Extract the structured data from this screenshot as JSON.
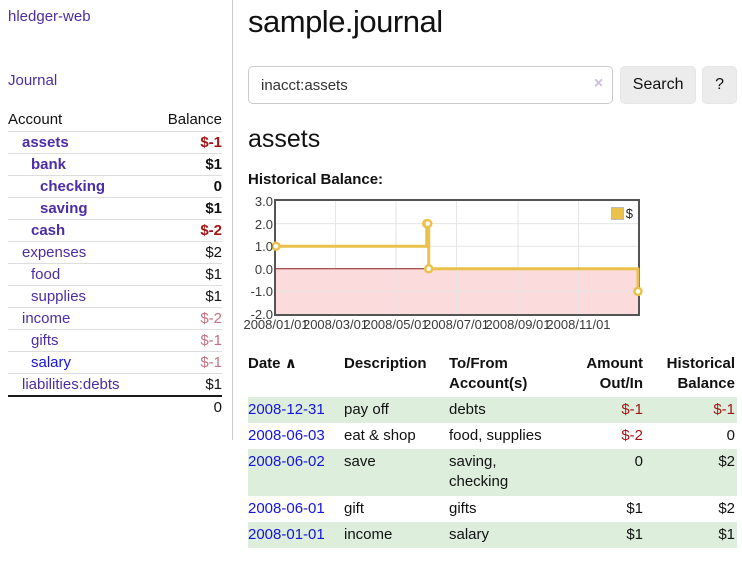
{
  "app": {
    "title": "hledger-web",
    "journal_link": "Journal"
  },
  "sidebar": {
    "col_account": "Account",
    "col_balance": "Balance",
    "accounts": [
      {
        "name": "assets",
        "depth": 1,
        "balance": "$-1",
        "bold": true,
        "balance_tone": "strong-negative",
        "link_color": "purple"
      },
      {
        "name": "bank",
        "depth": 2,
        "balance": "$1",
        "bold": true,
        "balance_tone": "normal",
        "link_color": "purple"
      },
      {
        "name": "checking",
        "depth": 3,
        "balance": "0",
        "bold": true,
        "balance_tone": "normal",
        "link_color": "purple"
      },
      {
        "name": "saving",
        "depth": 3,
        "balance": "$1",
        "bold": true,
        "balance_tone": "normal",
        "link_color": "purple"
      },
      {
        "name": "cash",
        "depth": 2,
        "balance": "$-2",
        "bold": true,
        "balance_tone": "strong-negative",
        "link_color": "purple"
      },
      {
        "name": "expenses",
        "depth": 1,
        "balance": "$2",
        "bold": false,
        "balance_tone": "normal",
        "link_color": "purple"
      },
      {
        "name": "food",
        "depth": 2,
        "balance": "$1",
        "bold": false,
        "balance_tone": "normal",
        "link_color": "purple"
      },
      {
        "name": "supplies",
        "depth": 2,
        "balance": "$1",
        "bold": false,
        "balance_tone": "normal",
        "link_color": "purple"
      },
      {
        "name": "income",
        "depth": 1,
        "balance": "$-2",
        "bold": false,
        "balance_tone": "soft-negative",
        "link_color": "purple"
      },
      {
        "name": "gifts",
        "depth": 2,
        "balance": "$-1",
        "bold": false,
        "balance_tone": "soft-negative",
        "link_color": "purple"
      },
      {
        "name": "salary",
        "depth": 2,
        "balance": "$-1",
        "bold": false,
        "balance_tone": "soft-negative",
        "link_color": "blue"
      },
      {
        "name": "liabilities:debts",
        "depth": 1,
        "balance": "$1",
        "bold": false,
        "balance_tone": "normal",
        "link_color": "purple"
      }
    ],
    "total": "0"
  },
  "main": {
    "title": "sample.journal",
    "search": {
      "value": "inacct:assets",
      "clear_icon": "×",
      "search_label": "Search",
      "help_label": "?"
    },
    "account_heading": "assets",
    "section_label": "Historical Balance:"
  },
  "chart_data": {
    "type": "line",
    "title": "Historical Balance",
    "step": true,
    "legend": [
      {
        "label": "$",
        "color": "#E9C14B"
      }
    ],
    "x_tick_labels": [
      "2008/01/01",
      "2008/03/01",
      "2008/05/01",
      "2008/07/01",
      "2008/09/01",
      "2008/11/01"
    ],
    "x_tick_days": [
      0,
      60,
      121,
      182,
      244,
      305
    ],
    "x_domain_days": 365,
    "y_ticks": [
      "3.0",
      "2.0",
      "1.0",
      "0.0",
      "-1.0",
      "-2.0"
    ],
    "ylim": [
      -2,
      3
    ],
    "points": [
      {
        "date": "2008-01-01",
        "day": 0,
        "value": 1
      },
      {
        "date": "2008-06-01",
        "day": 152,
        "value": 2
      },
      {
        "date": "2008-06-02",
        "day": 153,
        "value": 2
      },
      {
        "date": "2008-06-03",
        "day": 154,
        "value": 0
      },
      {
        "date": "2008-12-31",
        "day": 365,
        "value": -1
      }
    ],
    "line_color": "#E9C14B",
    "negative_region_color": "#FBDBDB",
    "zero_line_color": "#8B1A1A",
    "grid_color": "#E6E6E6",
    "border_color": "#545454"
  },
  "register": {
    "sort_icon": "∧",
    "headers": {
      "date": "Date",
      "description": "Description",
      "accounts": "To/From Account(s)",
      "amount": "Amount Out/In",
      "balance": "Historical Balance"
    },
    "rows": [
      {
        "date": "2008-12-31",
        "description": "pay off",
        "accounts": "debts",
        "amount": "$-1",
        "amount_negative": true,
        "balance": "$-1",
        "balance_negative": true
      },
      {
        "date": "2008-06-03",
        "description": "eat & shop",
        "accounts": "food, supplies",
        "amount": "$-2",
        "amount_negative": true,
        "balance": "0",
        "balance_negative": false
      },
      {
        "date": "2008-06-02",
        "description": "save",
        "accounts": "saving, checking",
        "amount": "0",
        "amount_negative": false,
        "balance": "$2",
        "balance_negative": false
      },
      {
        "date": "2008-06-01",
        "description": "gift",
        "accounts": "gifts",
        "amount": "$1",
        "amount_negative": false,
        "balance": "$2",
        "balance_negative": false
      },
      {
        "date": "2008-01-01",
        "description": "income",
        "accounts": "salary",
        "amount": "$1",
        "amount_negative": false,
        "balance": "$1",
        "balance_negative": false
      }
    ]
  }
}
